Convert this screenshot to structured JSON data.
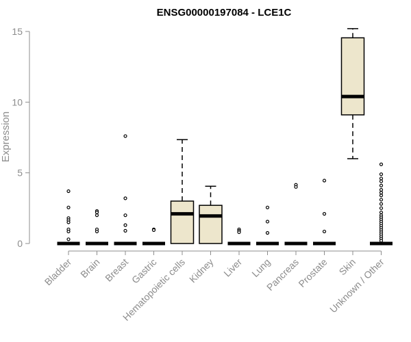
{
  "chart_data": {
    "type": "boxplot",
    "title": "ENSG00000197084 - LCE1C",
    "xlabel": "",
    "ylabel": "Expression",
    "ylim": [
      0,
      15
    ],
    "yticks": [
      0,
      5,
      10,
      15
    ],
    "categories": [
      "Bladder",
      "Brain",
      "Breast",
      "Gastric",
      "Hematopoietic cells",
      "Kidney",
      "Liver",
      "Lung",
      "Pancreas",
      "Prostate",
      "Skin",
      "Unknown / Other"
    ],
    "box_fill": "#ede6cc",
    "boxes": [
      {
        "name": "Bladder",
        "q1": 0,
        "median": 0,
        "q3": 0,
        "whisker_low": 0,
        "whisker_high": 0,
        "outliers": [
          3.7,
          2.55,
          1.8,
          1.65,
          1.5,
          1.0,
          0.85,
          0.3
        ]
      },
      {
        "name": "Brain",
        "q1": 0,
        "median": 0,
        "q3": 0,
        "whisker_low": 0,
        "whisker_high": 0,
        "outliers": [
          2.3,
          2.2,
          2.0,
          1.0,
          0.85
        ]
      },
      {
        "name": "Breast",
        "q1": 0,
        "median": 0,
        "q3": 0,
        "whisker_low": 0,
        "whisker_high": 0,
        "outliers": [
          7.6,
          3.2,
          2.0,
          1.3,
          0.9
        ]
      },
      {
        "name": "Gastric",
        "q1": 0,
        "median": 0,
        "q3": 0,
        "whisker_low": 0,
        "whisker_high": 0,
        "outliers": [
          1.0,
          0.95
        ]
      },
      {
        "name": "Hematopoietic cells",
        "q1": 0,
        "median": 2.1,
        "q3": 3.0,
        "whisker_low": 0,
        "whisker_high": 7.35,
        "outliers": []
      },
      {
        "name": "Kidney",
        "q1": 0,
        "median": 1.95,
        "q3": 2.7,
        "whisker_low": 0,
        "whisker_high": 4.05,
        "outliers": []
      },
      {
        "name": "Liver",
        "q1": 0,
        "median": 0,
        "q3": 0,
        "whisker_low": 0,
        "whisker_high": 0,
        "outliers": [
          1.0,
          0.9,
          0.8
        ]
      },
      {
        "name": "Lung",
        "q1": 0,
        "median": 0,
        "q3": 0,
        "whisker_low": 0,
        "whisker_high": 0,
        "outliers": [
          2.55,
          1.55,
          0.75
        ]
      },
      {
        "name": "Pancreas",
        "q1": 0,
        "median": 0,
        "q3": 0,
        "whisker_low": 0,
        "whisker_high": 0,
        "outliers": [
          4.15,
          4.0
        ]
      },
      {
        "name": "Prostate",
        "q1": 0,
        "median": 0,
        "q3": 0,
        "whisker_low": 0,
        "whisker_high": 0,
        "outliers": [
          4.45,
          2.1,
          0.85
        ]
      },
      {
        "name": "Skin",
        "q1": 9.1,
        "median": 10.4,
        "q3": 14.55,
        "whisker_low": 6.0,
        "whisker_high": 15.2,
        "outliers": []
      },
      {
        "name": "Unknown / Other",
        "q1": 0,
        "median": 0,
        "q3": 0,
        "whisker_low": 0,
        "whisker_high": 0,
        "outliers": [
          5.6,
          4.9,
          4.6,
          4.4,
          4.1,
          3.8,
          3.6,
          3.4,
          3.1,
          2.8,
          2.5,
          2.2,
          2.0,
          1.85,
          1.7,
          1.55,
          1.4,
          1.25,
          1.1,
          0.95,
          0.8,
          0.65,
          0.5,
          0.35,
          0.2
        ]
      }
    ]
  }
}
